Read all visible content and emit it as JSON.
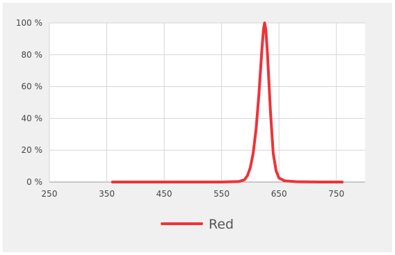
{
  "chart_data": {
    "type": "line",
    "title": "",
    "xlabel": "",
    "ylabel": "",
    "xlim": [
      250,
      800
    ],
    "ylim": [
      0,
      100
    ],
    "x_ticks": [
      "250",
      "350",
      "450",
      "550",
      "650",
      "750"
    ],
    "y_ticks": [
      "0 %",
      "20 %",
      "40 %",
      "60 %",
      "80 %",
      "100 %"
    ],
    "grid": true,
    "legend_position": "bottom-center",
    "series": [
      {
        "name": "Red",
        "color": "#ee3338",
        "x": [
          360,
          400,
          450,
          500,
          550,
          580,
          590,
          595,
          600,
          605,
          610,
          615,
          620,
          623,
          625,
          627,
          630,
          635,
          640,
          645,
          650,
          660,
          680,
          720,
          760
        ],
        "y": [
          0,
          0,
          0,
          0,
          0,
          0.3,
          1.5,
          4,
          9,
          18,
          33,
          55,
          82,
          96,
          100,
          96,
          80,
          45,
          18,
          7,
          2.5,
          0.8,
          0.2,
          0,
          0
        ]
      }
    ]
  }
}
